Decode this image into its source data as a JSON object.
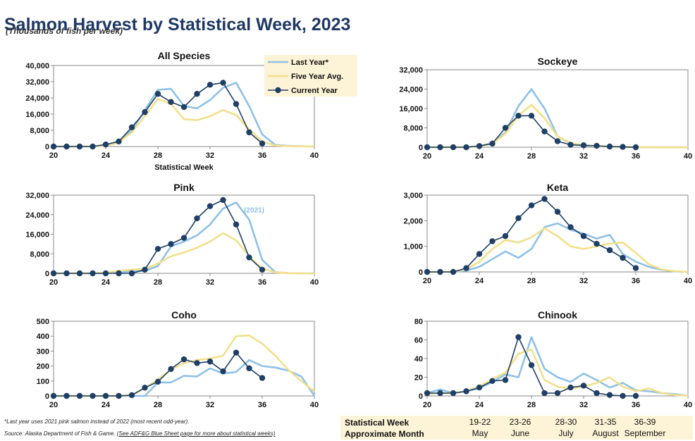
{
  "header": {
    "title": "Salmon Harvest by Statistical Week, 2023",
    "subtitle": "(Thousands of fish per week)"
  },
  "legend": {
    "items": [
      {
        "label": "Last Year*",
        "color": "#8ec1e8"
      },
      {
        "label": "Five Year Avg.",
        "color": "#f2e08a"
      },
      {
        "label": "Current Year",
        "color": "#1f3f66"
      }
    ]
  },
  "footer": {
    "footnote": "*Last year uses 2021 pink salmon instead of 2022 (most recent odd-year).",
    "source_prefix": "Source: Alaska Department of Fish & Game.",
    "source_link": "(See ADF&G Blue Sheet page for more about statistical weeks)"
  },
  "week_table": {
    "row1_label": "Statistical Week",
    "row2_label": "Approximate Month",
    "columns": [
      {
        "weeks": "19-22",
        "month": "May"
      },
      {
        "weeks": "23-26",
        "month": "June"
      },
      {
        "weeks": "28-30",
        "month": "July"
      },
      {
        "weeks": "31-35",
        "month": "August"
      },
      {
        "weeks": "36-39",
        "month": "September"
      }
    ]
  },
  "chart_data": [
    {
      "id": "all",
      "type": "line",
      "title": "All Species",
      "xlabel": "Statistical Week",
      "ylabel": "",
      "xlim": [
        20,
        40
      ],
      "ylim": [
        0,
        40000
      ],
      "xticks": [
        "20",
        "24",
        "28",
        "32",
        "36",
        "40"
      ],
      "yticks": [
        "0",
        "8,000",
        "16,000",
        "24,000",
        "32,000",
        "40,000"
      ],
      "series": [
        {
          "name": "Last Year*",
          "x": [
            20,
            21,
            22,
            23,
            24,
            25,
            26,
            27,
            28,
            29,
            30,
            31,
            32,
            33,
            34,
            35,
            36,
            37,
            38,
            39,
            40
          ],
          "values": [
            0,
            0,
            0,
            100,
            500,
            2500,
            8000,
            18000,
            28000,
            28500,
            20000,
            18800,
            23000,
            29000,
            31500,
            20000,
            6000,
            800,
            300,
            100,
            0
          ]
        },
        {
          "name": "Five Year Avg.",
          "x": [
            20,
            21,
            22,
            23,
            24,
            25,
            26,
            27,
            28,
            29,
            30,
            31,
            32,
            33,
            34,
            35,
            36,
            37,
            38,
            39,
            40
          ],
          "values": [
            0,
            0,
            0,
            100,
            400,
            2000,
            7000,
            15000,
            23500,
            21000,
            13500,
            13000,
            15000,
            18000,
            15500,
            8500,
            2500,
            500,
            200,
            100,
            0
          ]
        },
        {
          "name": "Current Year",
          "x": [
            20,
            21,
            22,
            23,
            24,
            25,
            26,
            27,
            28,
            29,
            30,
            31,
            32,
            33,
            34,
            35,
            36
          ],
          "values": [
            0,
            0,
            0,
            0,
            1000,
            2500,
            9500,
            17000,
            26000,
            22000,
            19500,
            26000,
            30500,
            31500,
            21000,
            7000,
            1500
          ]
        }
      ]
    },
    {
      "id": "sockeye",
      "type": "line",
      "title": "Sockeye",
      "xlabel": "",
      "ylabel": "",
      "xlim": [
        20,
        40
      ],
      "ylim": [
        0,
        32000
      ],
      "xticks": [
        "20",
        "24",
        "28",
        "32",
        "36",
        "40"
      ],
      "yticks": [
        "0",
        "8,000",
        "16,000",
        "24,000",
        "32,000"
      ],
      "series": [
        {
          "name": "Last Year*",
          "x": [
            20,
            21,
            22,
            23,
            24,
            25,
            26,
            27,
            28,
            29,
            30,
            31,
            32,
            33,
            34,
            35,
            36,
            37,
            38,
            39,
            40
          ],
          "values": [
            0,
            0,
            0,
            100,
            400,
            1800,
            6000,
            17000,
            24000,
            16000,
            4500,
            1500,
            600,
            300,
            150,
            80,
            40,
            20,
            0,
            0,
            0
          ]
        },
        {
          "name": "Five Year Avg.",
          "x": [
            20,
            21,
            22,
            23,
            24,
            25,
            26,
            27,
            28,
            29,
            30,
            31,
            32,
            33,
            34,
            35,
            36,
            37,
            38,
            39,
            40
          ],
          "values": [
            0,
            0,
            0,
            100,
            400,
            1500,
            5500,
            13000,
            17500,
            12000,
            4500,
            1800,
            800,
            400,
            200,
            100,
            50,
            20,
            0,
            0,
            0
          ]
        },
        {
          "name": "Current Year",
          "x": [
            20,
            21,
            22,
            23,
            24,
            25,
            26,
            27,
            28,
            29,
            30,
            31,
            32,
            33,
            34,
            35,
            36
          ],
          "values": [
            0,
            0,
            0,
            0,
            500,
            1500,
            8000,
            13000,
            13000,
            6500,
            2500,
            1000,
            800,
            600,
            300,
            150,
            0
          ]
        }
      ]
    },
    {
      "id": "pink",
      "type": "line",
      "title": "Pink",
      "xlabel": "",
      "ylabel": "",
      "xlim": [
        20,
        40
      ],
      "ylim": [
        0,
        32000
      ],
      "xticks": [
        "20",
        "24",
        "28",
        "32",
        "36",
        "40"
      ],
      "yticks": [
        "0",
        "8,000",
        "16,000",
        "24,000",
        "32,000"
      ],
      "annotation": {
        "text": "(2021)",
        "x": 34.6,
        "y": 25000
      },
      "series": [
        {
          "name": "Last Year*",
          "x": [
            20,
            21,
            22,
            23,
            24,
            25,
            26,
            27,
            28,
            29,
            30,
            31,
            32,
            33,
            34,
            35,
            36,
            37,
            38,
            39,
            40
          ],
          "values": [
            0,
            0,
            0,
            0,
            100,
            500,
            800,
            1000,
            3000,
            11000,
            13000,
            15500,
            20000,
            26500,
            29000,
            22000,
            5500,
            500,
            100,
            0,
            0
          ]
        },
        {
          "name": "Five Year Avg.",
          "x": [
            20,
            21,
            22,
            23,
            24,
            25,
            26,
            27,
            28,
            29,
            30,
            31,
            32,
            33,
            34,
            35,
            36,
            37,
            38,
            39,
            40
          ],
          "values": [
            0,
            0,
            0,
            0,
            300,
            1000,
            1500,
            1800,
            4000,
            7000,
            8500,
            10500,
            13000,
            16500,
            13500,
            7000,
            2000,
            400,
            100,
            0,
            0
          ]
        },
        {
          "name": "Current Year",
          "x": [
            20,
            21,
            22,
            23,
            24,
            25,
            26,
            27,
            28,
            29,
            30,
            31,
            32,
            33,
            34,
            35,
            36
          ],
          "values": [
            0,
            0,
            0,
            0,
            0,
            0,
            0,
            1500,
            10000,
            12000,
            14500,
            22500,
            27500,
            30000,
            20000,
            6500,
            1500
          ]
        }
      ]
    },
    {
      "id": "keta",
      "type": "line",
      "title": "Keta",
      "xlabel": "",
      "ylabel": "",
      "xlim": [
        20,
        40
      ],
      "ylim": [
        0,
        3000
      ],
      "xticks": [
        "20",
        "24",
        "28",
        "32",
        "36",
        "40"
      ],
      "yticks": [
        "0",
        "1,000",
        "2,000",
        "3,000"
      ],
      "series": [
        {
          "name": "Last Year*",
          "x": [
            20,
            21,
            22,
            23,
            24,
            25,
            26,
            27,
            28,
            29,
            30,
            31,
            32,
            33,
            34,
            35,
            36,
            37,
            38,
            39,
            40
          ],
          "values": [
            0,
            0,
            10,
            50,
            200,
            500,
            800,
            550,
            900,
            1750,
            1900,
            1650,
            1500,
            1300,
            1450,
            700,
            400,
            200,
            80,
            20,
            0
          ]
        },
        {
          "name": "Five Year Avg.",
          "x": [
            20,
            21,
            22,
            23,
            24,
            25,
            26,
            27,
            28,
            29,
            30,
            31,
            32,
            33,
            34,
            35,
            36,
            37,
            38,
            39,
            40
          ],
          "values": [
            0,
            0,
            20,
            100,
            400,
            900,
            1250,
            1150,
            1350,
            1700,
            1400,
            1000,
            900,
            1000,
            1100,
            1150,
            750,
            300,
            100,
            30,
            0
          ]
        },
        {
          "name": "Current Year",
          "x": [
            20,
            21,
            22,
            23,
            24,
            25,
            26,
            27,
            28,
            29,
            30,
            31,
            32,
            33,
            34,
            35,
            36
          ],
          "values": [
            0,
            0,
            0,
            150,
            700,
            1200,
            1400,
            2100,
            2600,
            2850,
            2350,
            1750,
            1400,
            1100,
            850,
            550,
            150
          ]
        }
      ]
    },
    {
      "id": "coho",
      "type": "line",
      "title": "Coho",
      "xlabel": "",
      "ylabel": "",
      "xlim": [
        20,
        40
      ],
      "ylim": [
        0,
        500
      ],
      "xticks": [
        "20",
        "24",
        "28",
        "32",
        "36",
        "40"
      ],
      "yticks": [
        "0",
        "100",
        "200",
        "300",
        "400",
        "500"
      ],
      "series": [
        {
          "name": "Last Year*",
          "x": [
            20,
            21,
            22,
            23,
            24,
            25,
            26,
            27,
            28,
            29,
            30,
            31,
            32,
            33,
            34,
            35,
            36,
            37,
            38,
            39,
            40
          ],
          "values": [
            0,
            0,
            0,
            0,
            0,
            0,
            0,
            0,
            90,
            90,
            135,
            130,
            185,
            150,
            160,
            240,
            200,
            190,
            170,
            130,
            0
          ]
        },
        {
          "name": "Five Year Avg.",
          "x": [
            20,
            21,
            22,
            23,
            24,
            25,
            26,
            27,
            28,
            29,
            30,
            31,
            32,
            33,
            34,
            35,
            36,
            37,
            38,
            39,
            40
          ],
          "values": [
            0,
            0,
            0,
            0,
            0,
            0,
            5,
            50,
            110,
            175,
            220,
            240,
            250,
            270,
            400,
            405,
            350,
            270,
            175,
            100,
            30
          ]
        },
        {
          "name": "Current Year",
          "x": [
            20,
            21,
            22,
            23,
            24,
            25,
            26,
            27,
            28,
            29,
            30,
            31,
            32,
            33,
            34,
            35,
            36
          ],
          "values": [
            0,
            0,
            0,
            0,
            0,
            0,
            5,
            55,
            95,
            180,
            245,
            220,
            230,
            165,
            290,
            185,
            120
          ]
        }
      ]
    },
    {
      "id": "chinook",
      "type": "line",
      "title": "Chinook",
      "xlabel": "",
      "ylabel": "",
      "xlim": [
        20,
        40
      ],
      "ylim": [
        0,
        80
      ],
      "xticks": [
        "20",
        "24",
        "28",
        "32",
        "36",
        "40"
      ],
      "yticks": [
        "0",
        "20",
        "40",
        "60",
        "80"
      ],
      "series": [
        {
          "name": "Last Year*",
          "x": [
            20,
            21,
            22,
            23,
            24,
            25,
            26,
            27,
            28,
            29,
            30,
            31,
            32,
            33,
            34,
            35,
            36,
            37,
            38,
            39,
            40
          ],
          "values": [
            3,
            7,
            3,
            5,
            8,
            15,
            23,
            20,
            63,
            29,
            20,
            15,
            24,
            17,
            9,
            14,
            6,
            5,
            3,
            2,
            0
          ]
        },
        {
          "name": "Five Year Avg.",
          "x": [
            20,
            21,
            22,
            23,
            24,
            25,
            26,
            27,
            28,
            29,
            30,
            31,
            32,
            33,
            34,
            35,
            36,
            37,
            38,
            39,
            40
          ],
          "values": [
            2,
            3,
            3,
            5,
            10,
            18,
            25,
            45,
            50,
            17,
            10,
            8,
            10,
            14,
            20,
            10,
            5,
            8,
            3,
            1,
            0
          ]
        },
        {
          "name": "Current Year",
          "x": [
            20,
            21,
            22,
            23,
            24,
            25,
            26,
            27,
            28,
            29,
            30,
            31,
            32,
            33,
            34,
            35,
            36
          ],
          "values": [
            3,
            3,
            3,
            5,
            9,
            16,
            17,
            63,
            33,
            3,
            3,
            9,
            11,
            3,
            1,
            0,
            0
          ]
        }
      ]
    }
  ]
}
